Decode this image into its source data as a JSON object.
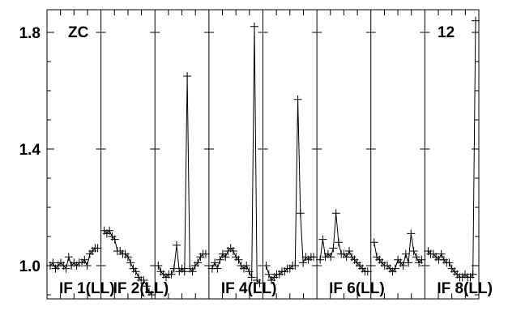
{
  "chart_data": {
    "type": "line",
    "title": "",
    "xlabel": "",
    "ylabel": "",
    "ylim": [
      0.88,
      1.86
    ],
    "yticks": [
      "1.0",
      "1.4",
      "1.8"
    ],
    "ytick_values": [
      1.0,
      1.4,
      1.8
    ],
    "annotations": {
      "top_left": "ZC",
      "top_right": "12"
    },
    "marker": "plus",
    "color": "#000000",
    "grid": false,
    "panels": [
      {
        "label": "IF 1(LL)",
        "values": [
          1.0,
          1.01,
          0.99,
          1.0,
          1.01,
          1.0,
          0.99,
          1.03,
          1.0,
          1.01,
          1.0,
          1.01,
          1.01,
          1.02,
          1.0,
          1.04,
          1.05,
          1.06,
          1.06
        ]
      },
      {
        "label": "IF 2(LL)",
        "values": [
          1.12,
          1.11,
          1.12,
          1.1,
          1.09,
          1.05,
          1.05,
          1.04,
          1.04,
          1.03,
          1.01,
          0.99,
          0.98,
          0.96,
          0.95,
          0.95,
          0.93,
          0.91,
          0.9
        ]
      },
      {
        "label": "",
        "values": [
          1.0,
          0.98,
          0.97,
          0.96,
          0.97,
          0.97,
          0.99,
          1.07,
          0.98,
          0.99,
          0.98,
          1.65,
          0.99,
          0.98,
          1.0,
          1.01,
          1.03,
          1.04,
          1.04
        ]
      },
      {
        "label": "IF 4(LL)",
        "values": [
          0.99,
          1.01,
          0.99,
          1.02,
          1.04,
          1.03,
          1.05,
          1.06,
          1.05,
          1.03,
          1.02,
          1.0,
          0.99,
          1.0,
          0.98,
          0.96,
          1.82,
          0.95,
          0.94
        ]
      },
      {
        "label": "",
        "values": [
          1.0,
          0.97,
          0.95,
          0.96,
          0.97,
          0.97,
          0.98,
          0.98,
          0.99,
          0.99,
          1.0,
          1.0,
          1.57,
          1.18,
          1.01,
          1.03,
          1.02,
          1.03,
          1.03
        ]
      },
      {
        "label": "IF 6(LL)",
        "values": [
          1.02,
          1.09,
          1.03,
          1.04,
          1.03,
          1.06,
          1.18,
          1.08,
          1.04,
          1.04,
          1.03,
          1.05,
          1.03,
          1.02,
          1.01,
          1.0,
          0.99,
          0.98,
          0.98
        ]
      },
      {
        "label": "",
        "values": [
          1.08,
          1.03,
          1.02,
          1.01,
          1.0,
          1.0,
          0.99,
          0.98,
          0.99,
          1.02,
          1.01,
          1.0,
          1.04,
          1.01,
          1.11,
          1.05,
          1.03,
          1.01,
          1.02
        ]
      },
      {
        "label": "IF 8(LL)",
        "values": [
          1.05,
          1.04,
          1.04,
          1.03,
          1.02,
          1.04,
          1.02,
          1.01,
          1.01,
          0.99,
          0.98,
          0.97,
          0.96,
          0.96,
          0.97,
          0.96,
          0.96,
          0.97,
          1.84
        ]
      }
    ]
  }
}
